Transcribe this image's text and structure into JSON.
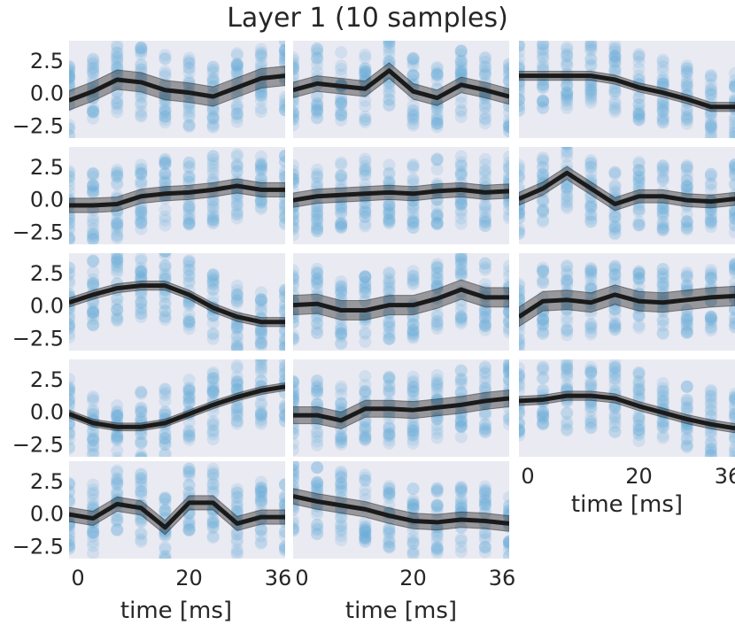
{
  "colors": {
    "points": "#6baed6",
    "mean": "#1a1a1a",
    "band": "#262626",
    "panel": "#eaeaf2"
  },
  "chart_data": {
    "type": "line",
    "title": "Layer 1 (10 samples)",
    "xlabel": "time [ms]",
    "ylabel": "",
    "x": [
      0,
      4,
      8,
      12,
      16,
      20,
      24,
      28,
      32,
      36
    ],
    "xticks": [
      0,
      20,
      36
    ],
    "xtick_labels": [
      "0",
      "20",
      "36"
    ],
    "ylim": [
      -3.5,
      4.0
    ],
    "yticks": [
      2.5,
      0.0,
      -2.5
    ],
    "ytick_labels": [
      "2.5",
      "0.0",
      "−2.5"
    ],
    "xlim": [
      0,
      36
    ],
    "grid": false,
    "panels": [
      {
        "name": "row1-col1",
        "row": 1,
        "col": 1,
        "mean": [
          -0.6,
          0.1,
          1.0,
          0.8,
          0.2,
          0.0,
          -0.3,
          0.4,
          1.1,
          1.3
        ],
        "spread": 0.75
      },
      {
        "name": "row1-col2",
        "row": 1,
        "col": 2,
        "mean": [
          0.2,
          0.7,
          0.5,
          0.3,
          1.7,
          0.1,
          -0.4,
          0.6,
          0.2,
          -0.3
        ],
        "spread": 0.6
      },
      {
        "name": "row1-col3",
        "row": 1,
        "col": 3,
        "mean": [
          1.3,
          1.3,
          1.3,
          1.3,
          1.0,
          0.4,
          0.0,
          -0.5,
          -1.1,
          -1.1
        ],
        "spread": 0.35
      },
      {
        "name": "row2-col1",
        "row": 2,
        "col": 1,
        "mean": [
          -0.5,
          -0.5,
          -0.4,
          0.2,
          0.4,
          0.5,
          0.7,
          1.0,
          0.7,
          0.7
        ],
        "spread": 0.55
      },
      {
        "name": "row2-col2",
        "row": 2,
        "col": 2,
        "mean": [
          -0.1,
          0.2,
          0.3,
          0.4,
          0.5,
          0.4,
          0.6,
          0.7,
          0.5,
          0.6
        ],
        "spread": 0.55
      },
      {
        "name": "row2-col3",
        "row": 2,
        "col": 3,
        "mean": [
          0.0,
          0.8,
          2.0,
          0.8,
          -0.4,
          0.2,
          0.2,
          -0.1,
          -0.2,
          0.0
        ],
        "spread": 0.5
      },
      {
        "name": "row3-col1",
        "row": 3,
        "col": 1,
        "mean": [
          0.2,
          0.8,
          1.3,
          1.5,
          1.5,
          0.8,
          -0.2,
          -0.9,
          -1.3,
          -1.3
        ],
        "spread": 0.35
      },
      {
        "name": "row3-col2",
        "row": 3,
        "col": 2,
        "mean": [
          0.0,
          0.1,
          -0.4,
          -0.4,
          0.0,
          0.0,
          0.5,
          1.2,
          0.6,
          0.6
        ],
        "spread": 0.75
      },
      {
        "name": "row3-col3",
        "row": 3,
        "col": 3,
        "mean": [
          -0.9,
          0.3,
          0.4,
          0.2,
          0.8,
          0.3,
          0.2,
          0.4,
          0.6,
          0.7
        ],
        "spread": 0.75
      },
      {
        "name": "row4-col1",
        "row": 4,
        "col": 1,
        "mean": [
          -0.2,
          -0.9,
          -1.2,
          -1.2,
          -0.9,
          -0.2,
          0.5,
          1.1,
          1.6,
          1.9
        ],
        "spread": 0.3
      },
      {
        "name": "row4-col2",
        "row": 4,
        "col": 2,
        "mean": [
          -0.3,
          -0.3,
          -0.7,
          0.2,
          0.2,
          0.1,
          0.3,
          0.5,
          0.8,
          1.0
        ],
        "spread": 0.65
      },
      {
        "name": "row4-col3",
        "row": 4,
        "col": 3,
        "mean": [
          0.8,
          0.9,
          1.2,
          1.2,
          1.0,
          0.4,
          -0.1,
          -0.6,
          -1.0,
          -1.3
        ],
        "spread": 0.35
      },
      {
        "name": "row5-col1",
        "row": 5,
        "col": 1,
        "mean": [
          -0.1,
          -0.4,
          0.7,
          0.4,
          -1.1,
          0.8,
          0.8,
          -0.8,
          -0.3,
          -0.3
        ],
        "spread": 0.55
      },
      {
        "name": "row5-col2",
        "row": 5,
        "col": 2,
        "mean": [
          1.3,
          0.9,
          0.6,
          0.3,
          -0.2,
          -0.6,
          -0.7,
          -0.5,
          -0.6,
          -0.8
        ],
        "spread": 0.6
      }
    ]
  }
}
